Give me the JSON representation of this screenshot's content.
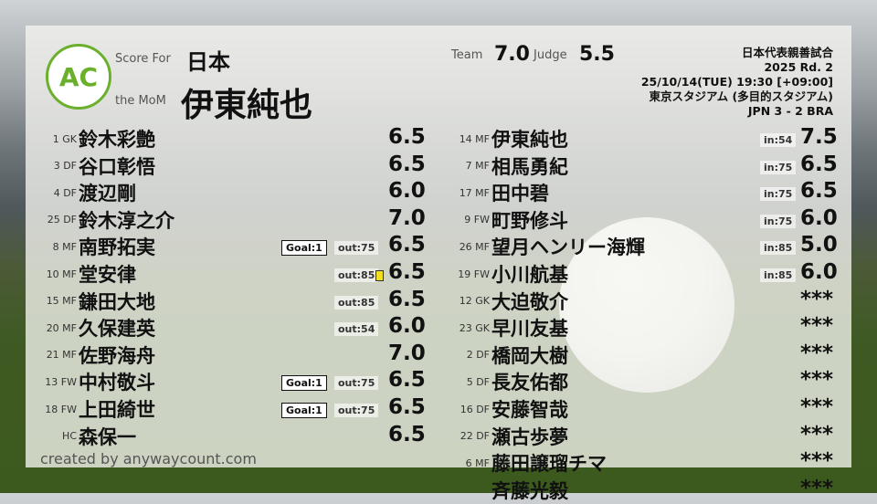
{
  "header": {
    "logo": "ANYWAY AC COUNT",
    "score_for_label": "Score For",
    "team": "日本",
    "mom_label": "the MoM",
    "mom": "伊東純也",
    "team_label": "Team",
    "team_score": "7.0",
    "judge_label": "Judge",
    "judge_score": "5.5"
  },
  "match": {
    "title": "日本代表親善試合",
    "round": "2025 Rd. 2",
    "datetime": "25/10/14(TUE) 19:30 [+09:00]",
    "venue": "東京スタジアム (多目的スタジアム)",
    "result": "JPN 3 - 2 BRA"
  },
  "starters": [
    {
      "num": "1",
      "pos": "GK",
      "name": "鈴木彩艶",
      "score": "6.5"
    },
    {
      "num": "3",
      "pos": "DF",
      "name": "谷口彰悟",
      "score": "6.5"
    },
    {
      "num": "4",
      "pos": "DF",
      "name": "渡辺剛",
      "score": "6.0"
    },
    {
      "num": "25",
      "pos": "DF",
      "name": "鈴木淳之介",
      "score": "7.0"
    },
    {
      "num": "8",
      "pos": "MF",
      "name": "南野拓実",
      "score": "6.5",
      "goal": "Goal:1",
      "out": "out:75"
    },
    {
      "num": "10",
      "pos": "MF",
      "name": "堂安律",
      "score": "6.5",
      "out": "out:85",
      "card": "yellow"
    },
    {
      "num": "15",
      "pos": "MF",
      "name": "鎌田大地",
      "score": "6.5",
      "out": "out:85"
    },
    {
      "num": "20",
      "pos": "MF",
      "name": "久保建英",
      "score": "6.0",
      "out": "out:54"
    },
    {
      "num": "21",
      "pos": "MF",
      "name": "佐野海舟",
      "score": "7.0"
    },
    {
      "num": "13",
      "pos": "FW",
      "name": "中村敬斗",
      "score": "6.5",
      "goal": "Goal:1",
      "out": "out:75"
    },
    {
      "num": "18",
      "pos": "FW",
      "name": "上田綺世",
      "score": "6.5",
      "goal": "Goal:1",
      "out": "out:75"
    },
    {
      "num": "",
      "pos": "HC",
      "name": "森保一",
      "score": "6.5"
    }
  ],
  "subs": [
    {
      "num": "14",
      "pos": "MF",
      "name": "伊東純也",
      "score": "7.5",
      "in": "in:54"
    },
    {
      "num": "7",
      "pos": "MF",
      "name": "相馬勇紀",
      "score": "6.5",
      "in": "in:75"
    },
    {
      "num": "17",
      "pos": "MF",
      "name": "田中碧",
      "score": "6.5",
      "in": "in:75"
    },
    {
      "num": "9",
      "pos": "FW",
      "name": "町野修斗",
      "score": "6.0",
      "in": "in:75"
    },
    {
      "num": "26",
      "pos": "MF",
      "name": "望月ヘンリー海輝",
      "score": "5.0",
      "in": "in:85"
    },
    {
      "num": "19",
      "pos": "FW",
      "name": "小川航基",
      "score": "6.0",
      "in": "in:85"
    },
    {
      "num": "12",
      "pos": "GK",
      "name": "大迫敬介",
      "score": "***"
    },
    {
      "num": "23",
      "pos": "GK",
      "name": "早川友基",
      "score": "***"
    },
    {
      "num": "2",
      "pos": "DF",
      "name": "橋岡大樹",
      "score": "***"
    },
    {
      "num": "5",
      "pos": "DF",
      "name": "長友佑都",
      "score": "***"
    },
    {
      "num": "16",
      "pos": "DF",
      "name": "安藤智哉",
      "score": "***"
    },
    {
      "num": "22",
      "pos": "DF",
      "name": "瀬古歩夢",
      "score": "***"
    },
    {
      "num": "6",
      "pos": "MF",
      "name": "藤田譲瑠チマ",
      "score": "***"
    },
    {
      "num": "",
      "pos": "",
      "name": "斉藤光毅",
      "score": "***"
    }
  ],
  "credit": "created by anywaycount.com"
}
